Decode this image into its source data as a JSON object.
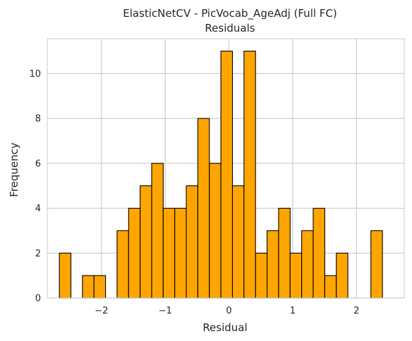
{
  "chart_data": {
    "type": "bar",
    "title": "ElasticNetCV - PicVocab_AgeAdj (Full FC)",
    "subtitle": "Residuals",
    "xlabel": "Residual",
    "ylabel": "Frequency",
    "xlim": [
      -2.85,
      2.75
    ],
    "ylim": [
      0,
      11.55
    ],
    "bin_width": 0.181,
    "bins_start": -2.66,
    "counts": [
      2,
      0,
      1,
      1,
      0,
      3,
      4,
      5,
      6,
      4,
      4,
      5,
      8,
      6,
      11,
      5,
      11,
      2,
      3,
      4,
      2,
      3,
      4,
      1,
      2,
      0,
      0,
      3
    ],
    "x_ticks": [
      -2,
      -1,
      0,
      1,
      2
    ],
    "x_tick_labels": [
      "−2",
      "−1",
      "0",
      "1",
      "2"
    ],
    "y_ticks": [
      0,
      2,
      4,
      6,
      8,
      10
    ],
    "y_tick_labels": [
      "0",
      "2",
      "4",
      "6",
      "8",
      "10"
    ],
    "grid": true,
    "bar_color": "#ffa500",
    "edge_color": "#000000",
    "grid_color": "#cccccc",
    "text_color": "#262626"
  }
}
